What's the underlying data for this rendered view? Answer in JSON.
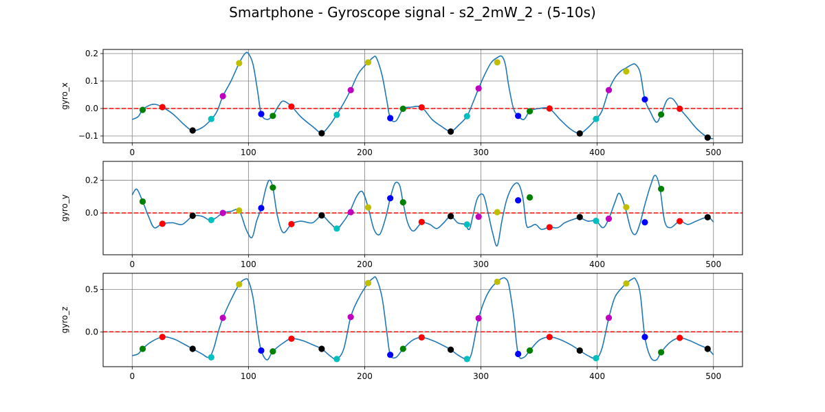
{
  "title": "Smartphone - Gyroscope signal - s2_2mW_2 - (5-10s)",
  "colors": {
    "line": "#1f77b4",
    "zero_line": "#ff0000",
    "grid": "#808080",
    "marker_cycle": [
      "#008000",
      "#ff0000",
      "#000000",
      "#00bfbf",
      "#bf00bf",
      "#bfbf00",
      "#0000ff"
    ]
  },
  "chart_data": [
    {
      "type": "line",
      "ylabel": "gyro_x",
      "xlim": [
        -25,
        525
      ],
      "ylim": [
        -0.125,
        0.215
      ],
      "x_ticks": [
        0,
        100,
        200,
        300,
        400,
        500
      ],
      "x_tick_labels": [
        "0",
        "100",
        "200",
        "300",
        "400",
        "500"
      ],
      "y_ticks": [
        -0.1,
        0.0,
        0.1,
        0.2
      ],
      "y_tick_labels": [
        "−0.1",
        "0.0",
        "0.1",
        "0.2"
      ],
      "zero_line": 0,
      "series": [
        {
          "x": [
            0,
            5,
            9,
            15,
            20,
            26,
            35,
            45,
            52,
            60,
            68,
            73,
            78,
            85,
            92,
            97,
            100,
            104,
            108,
            111,
            116,
            121,
            126,
            130,
            137,
            145,
            155,
            163,
            170,
            176,
            182,
            188,
            195,
            203,
            207,
            210,
            215,
            219,
            222,
            227,
            233,
            240,
            249,
            258,
            266,
            274,
            281,
            288,
            293,
            298,
            304,
            309,
            314,
            318,
            321,
            324,
            328,
            332,
            337,
            342,
            350,
            359,
            368,
            377,
            385,
            392,
            399,
            404,
            410,
            415,
            420,
            425,
            430,
            433,
            437,
            441,
            446,
            451,
            455,
            460,
            465,
            471,
            478,
            486,
            495,
            500
          ],
          "y": [
            -0.04,
            -0.03,
            -0.005,
            0.012,
            0.015,
            0.005,
            -0.02,
            -0.06,
            -0.08,
            -0.07,
            -0.04,
            -0.01,
            0.045,
            0.1,
            0.165,
            0.2,
            0.2,
            0.16,
            0.06,
            -0.02,
            -0.04,
            -0.025,
            0.01,
            0.027,
            0.008,
            -0.03,
            -0.065,
            -0.088,
            -0.06,
            -0.022,
            0.02,
            0.068,
            0.13,
            0.168,
            0.185,
            0.185,
            0.12,
            0.03,
            -0.035,
            -0.045,
            -0.002,
            0.005,
            0.004,
            -0.04,
            -0.065,
            -0.083,
            -0.06,
            -0.028,
            0.02,
            0.073,
            0.13,
            0.168,
            0.185,
            0.19,
            0.16,
            0.08,
            0.0,
            -0.027,
            -0.04,
            -0.01,
            0.0,
            -0.001,
            -0.04,
            -0.075,
            -0.09,
            -0.07,
            -0.038,
            -0.01,
            0.067,
            0.11,
            0.135,
            0.148,
            0.16,
            0.16,
            0.13,
            0.033,
            -0.015,
            -0.05,
            -0.022,
            0.03,
            0.035,
            0.0,
            -0.035,
            -0.075,
            -0.105,
            -0.11
          ]
        },
        {
          "role": "markers",
          "x": [
            9,
            26,
            52,
            68,
            78,
            92,
            111,
            121,
            137,
            163,
            176,
            188,
            203,
            222,
            233,
            249,
            274,
            288,
            298,
            314,
            332,
            342,
            359,
            385,
            399,
            410,
            425,
            441,
            455,
            471,
            495
          ],
          "y": [
            -0.005,
            0.005,
            -0.08,
            -0.038,
            0.045,
            0.165,
            -0.02,
            -0.027,
            0.007,
            -0.09,
            -0.023,
            0.067,
            0.168,
            -0.035,
            -0.001,
            0.004,
            -0.084,
            -0.028,
            0.073,
            0.168,
            -0.027,
            -0.01,
            0.0,
            -0.091,
            -0.038,
            0.067,
            0.135,
            0.033,
            -0.022,
            -0.001,
            -0.106
          ]
        }
      ]
    },
    {
      "type": "line",
      "ylabel": "gyro_y",
      "xlim": [
        -25,
        525
      ],
      "ylim": [
        -0.255,
        0.315
      ],
      "x_ticks": [
        0,
        100,
        200,
        300,
        400,
        500
      ],
      "x_tick_labels": [
        "0",
        "100",
        "200",
        "300",
        "400",
        "500"
      ],
      "y_ticks": [
        0.0,
        0.2
      ],
      "y_tick_labels": [
        "0.0",
        "0.2"
      ],
      "zero_line": 0,
      "series": [
        {
          "x": [
            0,
            4,
            9,
            14,
            19,
            26,
            35,
            43,
            52,
            60,
            67,
            72,
            78,
            85,
            92,
            98,
            103,
            107,
            111,
            115,
            118,
            121,
            125,
            130,
            137,
            145,
            155,
            163,
            170,
            176,
            181,
            187,
            193,
            198,
            203,
            208,
            213,
            218,
            222,
            226,
            230,
            233,
            237,
            242,
            249,
            256,
            262,
            268,
            274,
            280,
            286,
            290,
            293,
            297,
            302,
            306,
            310,
            314,
            318,
            322,
            327,
            332,
            336,
            339,
            342,
            347,
            352,
            359,
            366,
            372,
            379,
            385,
            392,
            399,
            405,
            410,
            415,
            419,
            424,
            429,
            433,
            437,
            441,
            446,
            450,
            454,
            458,
            463,
            471,
            478,
            485,
            495,
            500
          ],
          "y": [
            0.11,
            0.145,
            0.07,
            -0.02,
            -0.09,
            -0.065,
            -0.06,
            -0.07,
            -0.02,
            -0.02,
            -0.045,
            -0.03,
            0.0,
            0.01,
            0.015,
            -0.1,
            -0.15,
            -0.05,
            0.03,
            0.15,
            0.2,
            0.155,
            -0.02,
            -0.12,
            -0.068,
            -0.05,
            -0.06,
            -0.017,
            -0.06,
            -0.095,
            -0.06,
            0.005,
            0.1,
            0.13,
            0.034,
            -0.1,
            -0.13,
            -0.03,
            0.09,
            0.18,
            0.17,
            0.065,
            -0.06,
            -0.11,
            -0.06,
            -0.07,
            -0.095,
            -0.06,
            -0.02,
            -0.06,
            -0.07,
            -0.1,
            -0.02,
            0.09,
            0.11,
            0.005,
            -0.12,
            -0.2,
            -0.05,
            0.077,
            0.16,
            0.18,
            0.095,
            -0.07,
            -0.085,
            -0.07,
            -0.1,
            -0.087,
            -0.09,
            -0.06,
            -0.04,
            -0.03,
            -0.05,
            -0.048,
            -0.09,
            -0.035,
            0.06,
            0.12,
            0.035,
            -0.1,
            -0.13,
            -0.06,
            0.05,
            0.17,
            0.23,
            0.15,
            -0.05,
            -0.09,
            -0.05,
            -0.07,
            -0.05,
            -0.026,
            -0.055
          ]
        },
        {
          "role": "markers",
          "x": [
            9,
            26,
            52,
            68,
            78,
            92,
            111,
            121,
            137,
            163,
            176,
            188,
            203,
            222,
            233,
            249,
            274,
            288,
            298,
            314,
            332,
            342,
            359,
            385,
            399,
            410,
            425,
            441,
            455,
            471,
            495
          ],
          "y": [
            0.07,
            -0.066,
            -0.017,
            -0.043,
            0.0,
            0.015,
            0.03,
            0.155,
            -0.068,
            -0.015,
            -0.095,
            0.005,
            0.034,
            0.09,
            0.065,
            -0.055,
            -0.02,
            -0.07,
            -0.023,
            0.005,
            0.077,
            0.095,
            -0.087,
            -0.025,
            -0.048,
            -0.035,
            0.035,
            -0.057,
            0.147,
            -0.05,
            -0.026
          ]
        }
      ]
    },
    {
      "type": "line",
      "ylabel": "gyro_z",
      "xlim": [
        -25,
        525
      ],
      "ylim": [
        -0.41,
        0.69
      ],
      "x_ticks": [
        0,
        100,
        200,
        300,
        400,
        500
      ],
      "x_tick_labels": [
        "0",
        "100",
        "200",
        "300",
        "400",
        "500"
      ],
      "y_ticks": [
        0.0,
        0.5
      ],
      "y_tick_labels": [
        "0.0",
        "0.5"
      ],
      "zero_line": 0,
      "series": [
        {
          "x": [
            0,
            5,
            9,
            16,
            26,
            35,
            44,
            52,
            60,
            66,
            70,
            74,
            78,
            84,
            92,
            97,
            100,
            104,
            108,
            111,
            116,
            121,
            130,
            137,
            146,
            155,
            163,
            170,
            176,
            182,
            188,
            195,
            203,
            207,
            210,
            215,
            219,
            222,
            227,
            233,
            241,
            249,
            258,
            266,
            274,
            281,
            288,
            292,
            298,
            304,
            309,
            314,
            318,
            321,
            324,
            328,
            332,
            337,
            342,
            350,
            359,
            368,
            377,
            385,
            392,
            399,
            404,
            410,
            415,
            420,
            425,
            430,
            433,
            437,
            441,
            446,
            451,
            455,
            463,
            471,
            479,
            487,
            495,
            500
          ],
          "y": [
            -0.28,
            -0.26,
            -0.2,
            -0.12,
            -0.06,
            -0.08,
            -0.14,
            -0.2,
            -0.26,
            -0.3,
            -0.2,
            0.0,
            0.165,
            0.35,
            0.56,
            0.62,
            0.6,
            0.4,
            0.0,
            -0.22,
            -0.33,
            -0.23,
            -0.13,
            -0.08,
            -0.1,
            -0.15,
            -0.2,
            -0.28,
            -0.32,
            -0.2,
            0.175,
            0.4,
            0.575,
            0.63,
            0.63,
            0.4,
            0.0,
            -0.27,
            -0.3,
            -0.2,
            -0.1,
            -0.065,
            -0.1,
            -0.15,
            -0.21,
            -0.28,
            -0.32,
            -0.25,
            0.16,
            0.4,
            0.52,
            0.59,
            0.63,
            0.63,
            0.55,
            0.2,
            -0.26,
            -0.3,
            -0.22,
            -0.1,
            -0.06,
            -0.09,
            -0.15,
            -0.22,
            -0.28,
            -0.31,
            -0.2,
            0.165,
            0.4,
            0.5,
            0.57,
            0.62,
            0.62,
            0.45,
            -0.06,
            -0.3,
            -0.33,
            -0.24,
            -0.12,
            -0.07,
            -0.1,
            -0.15,
            -0.2,
            -0.27
          ]
        },
        {
          "role": "markers",
          "x": [
            9,
            26,
            52,
            68,
            78,
            92,
            111,
            121,
            137,
            163,
            176,
            188,
            203,
            222,
            233,
            249,
            274,
            288,
            298,
            314,
            332,
            342,
            359,
            385,
            399,
            410,
            425,
            441,
            455,
            471,
            495
          ],
          "y": [
            -0.2,
            -0.06,
            -0.2,
            -0.3,
            0.165,
            0.56,
            -0.22,
            -0.23,
            -0.08,
            -0.2,
            -0.32,
            0.175,
            0.575,
            -0.27,
            -0.2,
            -0.065,
            -0.21,
            -0.32,
            0.16,
            0.59,
            -0.26,
            -0.22,
            -0.06,
            -0.22,
            -0.31,
            0.165,
            0.57,
            -0.06,
            -0.24,
            -0.07,
            -0.2
          ]
        }
      ]
    }
  ]
}
